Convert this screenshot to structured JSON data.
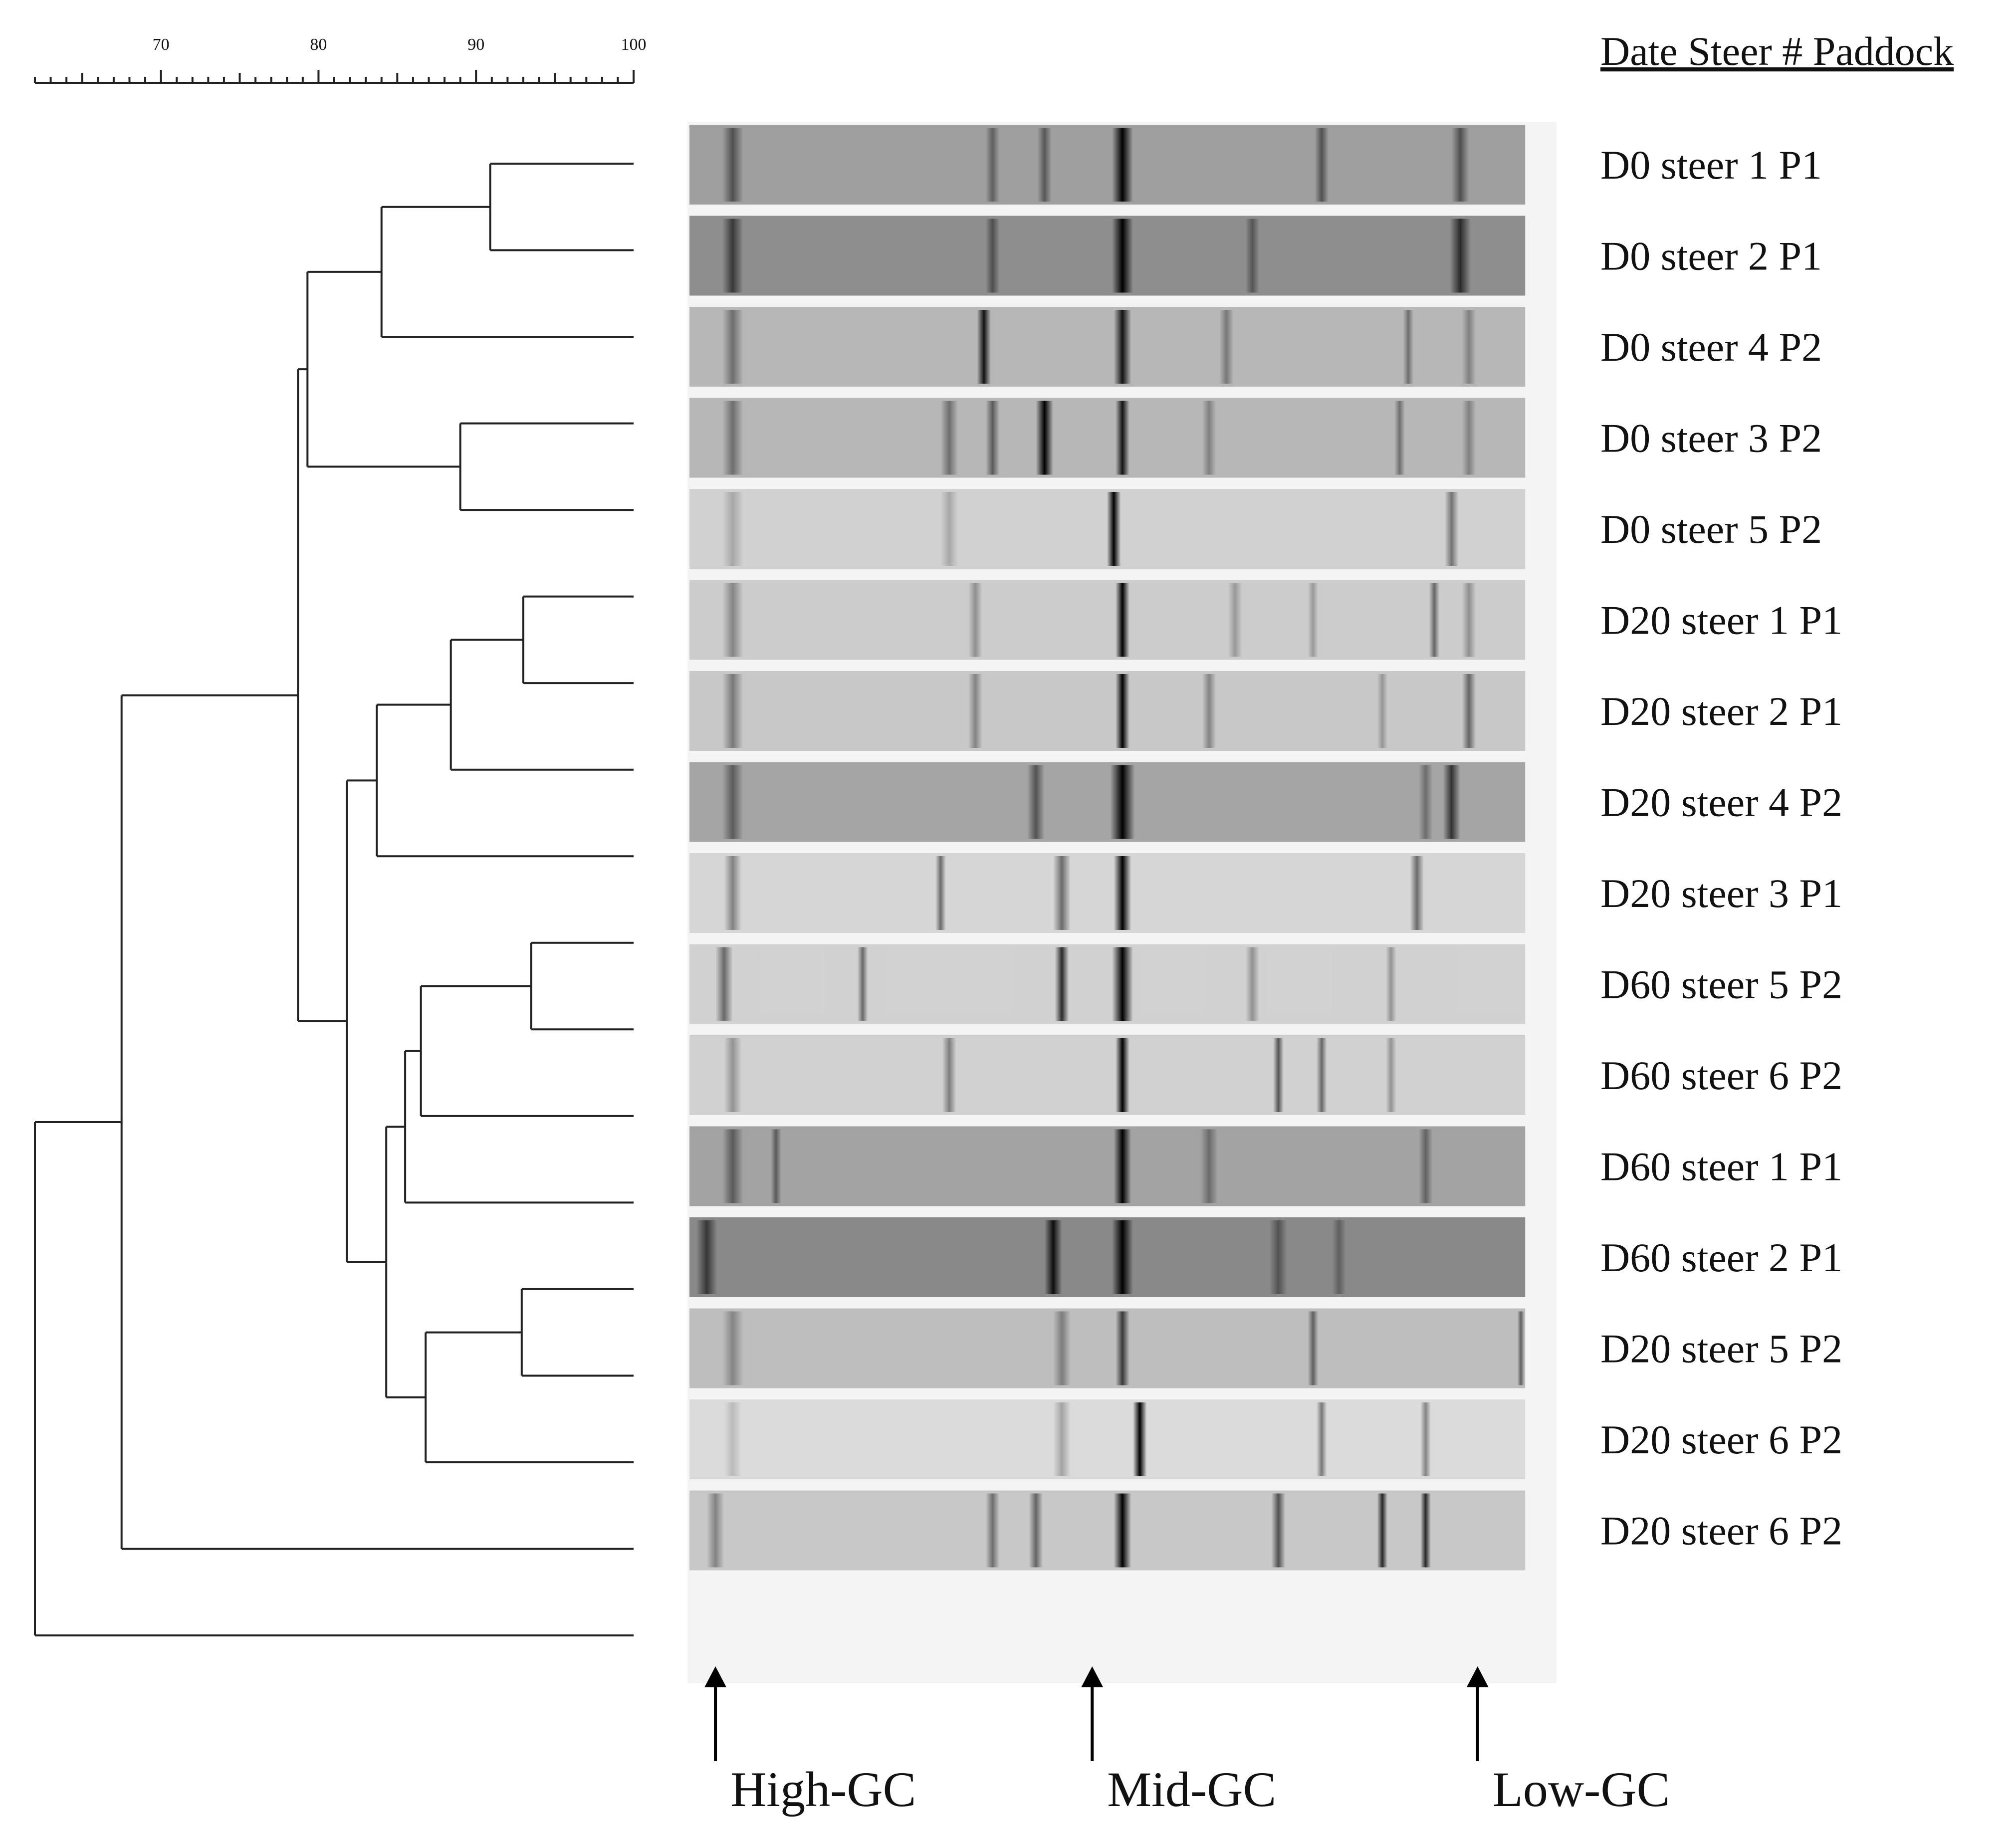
{
  "header": {
    "label": "Date Steer # Paddock"
  },
  "scale": {
    "min": 62,
    "max": 100,
    "ticks": [
      70,
      80,
      90,
      100
    ],
    "tick_labels": [
      "70",
      "80",
      "90",
      "100"
    ]
  },
  "lanes": [
    {
      "label": "D0 steer 1   P1",
      "bands": [
        [
          0.05,
          0.5,
          6
        ],
        [
          0.35,
          0.4,
          4
        ],
        [
          0.41,
          0.45,
          4
        ],
        [
          0.5,
          1,
          6
        ],
        [
          0.73,
          0.5,
          4
        ],
        [
          0.89,
          0.5,
          5
        ]
      ],
      "background": 0.35
    },
    {
      "label": "D0 steer 2   P1",
      "bands": [
        [
          0.05,
          0.6,
          6
        ],
        [
          0.35,
          0.45,
          4
        ],
        [
          0.5,
          1,
          6
        ],
        [
          0.65,
          0.4,
          4
        ],
        [
          0.89,
          0.7,
          6
        ]
      ],
      "background": 0.42
    },
    {
      "label": "D0 steer 4   P2",
      "bands": [
        [
          0.05,
          0.4,
          6
        ],
        [
          0.34,
          0.9,
          4
        ],
        [
          0.5,
          0.9,
          5
        ],
        [
          0.62,
          0.35,
          4
        ],
        [
          0.83,
          0.4,
          3
        ],
        [
          0.9,
          0.3,
          4
        ]
      ],
      "background": 0.25
    },
    {
      "label": "D0 steer 3   P2",
      "bands": [
        [
          0.05,
          0.4,
          6
        ],
        [
          0.3,
          0.4,
          5
        ],
        [
          0.35,
          0.5,
          4
        ],
        [
          0.41,
          1,
          5
        ],
        [
          0.5,
          0.9,
          4
        ],
        [
          0.6,
          0.3,
          4
        ],
        [
          0.82,
          0.4,
          3
        ],
        [
          0.9,
          0.3,
          4
        ]
      ],
      "background": 0.25
    },
    {
      "label": "D0 steer 5   P2",
      "bands": [
        [
          0.05,
          0.2,
          6
        ],
        [
          0.3,
          0.2,
          5
        ],
        [
          0.49,
          1,
          4
        ],
        [
          0.88,
          0.45,
          4
        ]
      ],
      "background": 0.14
    },
    {
      "label": "D20 steer 1 P1",
      "bands": [
        [
          0.05,
          0.35,
          6
        ],
        [
          0.33,
          0.3,
          4
        ],
        [
          0.5,
          1,
          4
        ],
        [
          0.63,
          0.25,
          4
        ],
        [
          0.72,
          0.25,
          3
        ],
        [
          0.86,
          0.5,
          3
        ],
        [
          0.9,
          0.3,
          4
        ]
      ],
      "background": 0.16
    },
    {
      "label": "D20 steer 2 P1",
      "bands": [
        [
          0.05,
          0.4,
          6
        ],
        [
          0.33,
          0.35,
          4
        ],
        [
          0.5,
          1,
          4
        ],
        [
          0.6,
          0.35,
          4
        ],
        [
          0.8,
          0.25,
          3
        ],
        [
          0.9,
          0.5,
          4
        ]
      ],
      "background": 0.18
    },
    {
      "label": "D20 steer 4 P2",
      "bands": [
        [
          0.05,
          0.45,
          6
        ],
        [
          0.4,
          0.5,
          5
        ],
        [
          0.5,
          1,
          7
        ],
        [
          0.85,
          0.35,
          4
        ],
        [
          0.88,
          0.7,
          5
        ]
      ],
      "background": 0.32
    },
    {
      "label": "D20 steer 3 P1",
      "bands": [
        [
          0.05,
          0.4,
          5
        ],
        [
          0.29,
          0.5,
          3
        ],
        [
          0.43,
          0.5,
          5
        ],
        [
          0.5,
          1,
          5
        ],
        [
          0.84,
          0.5,
          4
        ]
      ],
      "background": 0.12
    },
    {
      "label": "D60 steer 5 P2",
      "bands": [
        [
          0.04,
          0.5,
          5
        ],
        [
          0.2,
          0.5,
          3
        ],
        [
          0.43,
          0.8,
          4
        ],
        [
          0.5,
          1,
          6
        ],
        [
          0.65,
          0.3,
          4
        ],
        [
          0.81,
          0.3,
          3
        ]
      ],
      "background": 0.14
    },
    {
      "label": "D60 steer 6 P2",
      "bands": [
        [
          0.05,
          0.3,
          5
        ],
        [
          0.3,
          0.4,
          4
        ],
        [
          0.5,
          1,
          4
        ],
        [
          0.68,
          0.6,
          3
        ],
        [
          0.73,
          0.5,
          3
        ],
        [
          0.81,
          0.3,
          3
        ]
      ],
      "background": 0.14
    },
    {
      "label": "D60 steer 1 P1",
      "bands": [
        [
          0.05,
          0.45,
          6
        ],
        [
          0.1,
          0.45,
          3
        ],
        [
          0.5,
          1,
          5
        ],
        [
          0.6,
          0.35,
          5
        ],
        [
          0.85,
          0.4,
          4
        ]
      ],
      "background": 0.33
    },
    {
      "label": "D60 steer 2 P1",
      "bands": [
        [
          0.02,
          0.6,
          6
        ],
        [
          0.42,
          0.9,
          5
        ],
        [
          0.5,
          1,
          6
        ],
        [
          0.68,
          0.4,
          5
        ],
        [
          0.75,
          0.3,
          4
        ]
      ],
      "background": 0.44
    },
    {
      "label": "D20 steer 5 P2",
      "bands": [
        [
          0.05,
          0.3,
          6
        ],
        [
          0.43,
          0.35,
          5
        ],
        [
          0.5,
          0.7,
          4
        ],
        [
          0.72,
          0.5,
          3
        ],
        [
          0.96,
          0.5,
          2
        ]
      ],
      "background": 0.22
    },
    {
      "label": "D20 steer 6 P2",
      "bands": [
        [
          0.05,
          0.15,
          5
        ],
        [
          0.43,
          0.25,
          5
        ],
        [
          0.52,
          1,
          4
        ],
        [
          0.73,
          0.45,
          3
        ],
        [
          0.85,
          0.4,
          3
        ]
      ],
      "background": 0.1
    },
    {
      "label": "D20 steer 6 P2",
      "bands": [
        [
          0.03,
          0.35,
          5
        ],
        [
          0.35,
          0.45,
          4
        ],
        [
          0.4,
          0.5,
          4
        ],
        [
          0.5,
          1,
          5
        ],
        [
          0.68,
          0.6,
          4
        ],
        [
          0.8,
          0.8,
          3
        ],
        [
          0.85,
          0.8,
          3
        ]
      ],
      "background": 0.18
    }
  ],
  "dendrogram": {
    "leaf_order": [
      0,
      1,
      2,
      3,
      4,
      5,
      6,
      7,
      8,
      9,
      10,
      11,
      12,
      13,
      14,
      15
    ],
    "nodes": [
      {
        "id": "n1",
        "children": [
          "L0",
          "L1"
        ],
        "similarity": 90.9
      },
      {
        "id": "n2",
        "children": [
          "n1",
          "L2"
        ],
        "similarity": 84.0
      },
      {
        "id": "n3",
        "children": [
          "L3",
          "L4"
        ],
        "similarity": 89.0
      },
      {
        "id": "n4",
        "children": [
          "n2",
          "n3"
        ],
        "similarity": 79.3
      },
      {
        "id": "n5",
        "children": [
          "L5",
          "L6"
        ],
        "similarity": 93.0
      },
      {
        "id": "n6",
        "children": [
          "n5",
          "L7"
        ],
        "similarity": 88.4
      },
      {
        "id": "n7",
        "children": [
          "n6",
          "L8"
        ],
        "similarity": 83.7
      },
      {
        "id": "n8",
        "children": [
          "L9",
          "L10"
        ],
        "similarity": 93.5
      },
      {
        "id": "n9",
        "children": [
          "n8",
          "L11"
        ],
        "similarity": 86.5
      },
      {
        "id": "n10",
        "children": [
          "n9",
          "L12"
        ],
        "similarity": 85.5
      },
      {
        "id": "n11",
        "children": [
          "L13",
          "L14"
        ],
        "similarity": 92.9
      },
      {
        "id": "n12",
        "children": [
          "n11",
          "L15"
        ],
        "similarity": 86.8
      },
      {
        "id": "n13",
        "children": [
          "n10",
          "n12"
        ],
        "similarity": 84.3
      },
      {
        "id": "n14",
        "children": [
          "n7",
          "n13"
        ],
        "similarity": 81.8
      },
      {
        "id": "n15",
        "children": [
          "n4",
          "n14"
        ],
        "similarity": 78.7
      },
      {
        "id": "n16",
        "children": [
          "n15",
          "L16"
        ],
        "similarity": 67.5
      },
      {
        "id": "n17",
        "children": [
          "n16",
          "L17"
        ],
        "similarity": 62.0
      }
    ]
  },
  "gc_markers": [
    {
      "label": "High-GC",
      "position": 0.03
    },
    {
      "label": "Mid-GC",
      "position": 0.465
    },
    {
      "label": "Low-GC",
      "position": 0.91
    }
  ]
}
